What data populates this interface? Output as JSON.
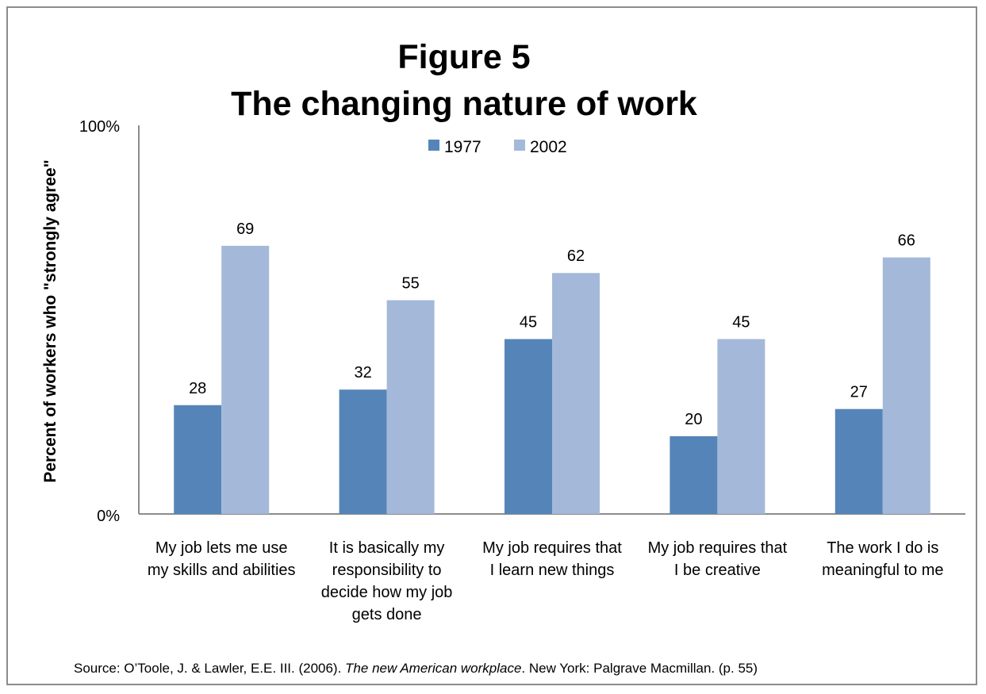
{
  "chart_data": {
    "type": "bar",
    "title": "Figure 5",
    "subtitle": "The changing nature of work",
    "ylabel": "Percent of workers who \"strongly agree\"",
    "xlabel": "",
    "ylim": [
      0,
      100
    ],
    "y_ticks": [
      "0%",
      "100%"
    ],
    "grid": false,
    "legend_position": "top",
    "categories": [
      [
        "My job lets me use",
        "my skills and abilities"
      ],
      [
        "It is basically my",
        "responsibility to",
        "decide how my job",
        "gets done"
      ],
      [
        "My job requires that",
        "I learn new things"
      ],
      [
        "My job requires that",
        "I be creative"
      ],
      [
        "The work I do is",
        "meaningful to me"
      ]
    ],
    "series": [
      {
        "name": "1977",
        "color": "#5585b8",
        "values": [
          28,
          32,
          45,
          20,
          27
        ]
      },
      {
        "name": "2002",
        "color": "#a4b9d9",
        "values": [
          69,
          55,
          62,
          45,
          66
        ]
      }
    ]
  },
  "source": {
    "prefix": "Source: O’Toole, J. & Lawler, E.E. III. (2006). ",
    "italic": "The new American workplace",
    "suffix": ". New York: Palgrave Macmillan. (p. 55)"
  }
}
